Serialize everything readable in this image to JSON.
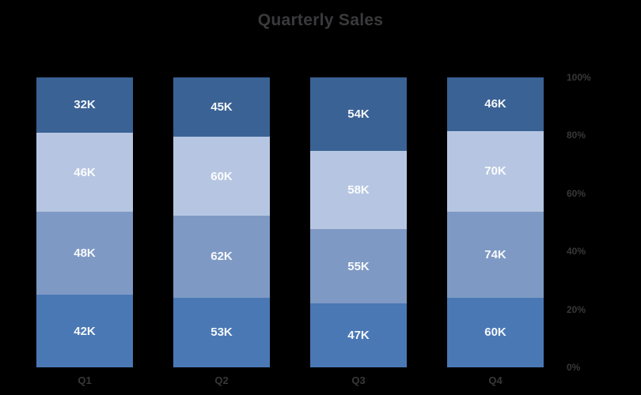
{
  "chart_data": {
    "type": "bar",
    "subtype": "stacked-100-percent",
    "title": "Quarterly Sales",
    "categories": [
      "Q1",
      "Q2",
      "Q3",
      "Q4"
    ],
    "series": [
      {
        "name": "stack-level-1-bottom",
        "color": "#4a78b4",
        "values": [
          42,
          53,
          47,
          60
        ]
      },
      {
        "name": "stack-level-2",
        "color": "#7e99c4",
        "values": [
          48,
          62,
          55,
          74
        ]
      },
      {
        "name": "stack-level-3",
        "color": "#b6c6e2",
        "values": [
          46,
          60,
          58,
          70
        ]
      },
      {
        "name": "stack-level-4-top",
        "color": "#3a6294",
        "values": [
          32,
          45,
          54,
          46
        ]
      }
    ],
    "data_labels_visible": true,
    "data_label_suffix": "K",
    "data_labels": {
      "Q1": [
        "32K",
        "46K",
        "48K",
        "42K"
      ],
      "Q2": [
        "45K",
        "60K",
        "62K",
        "53K"
      ],
      "Q3": [
        "54K",
        "58K",
        "55K",
        "47K"
      ],
      "Q4": [
        "46K",
        "70K",
        "74K",
        "60K"
      ]
    },
    "y_axis": {
      "position": "right",
      "ticks": [
        "0%",
        "20%",
        "40%",
        "60%",
        "80%",
        "100%"
      ],
      "range": [
        0,
        100
      ]
    },
    "x_axis": {
      "labels": [
        "Q1",
        "Q2",
        "Q3",
        "Q4"
      ]
    },
    "legend": "none",
    "grid": "off",
    "background": "#000000"
  },
  "styles": {
    "title_color": "#3a3a3c",
    "axis_label_color": "#383838",
    "data_label_color": "#ffffff"
  }
}
